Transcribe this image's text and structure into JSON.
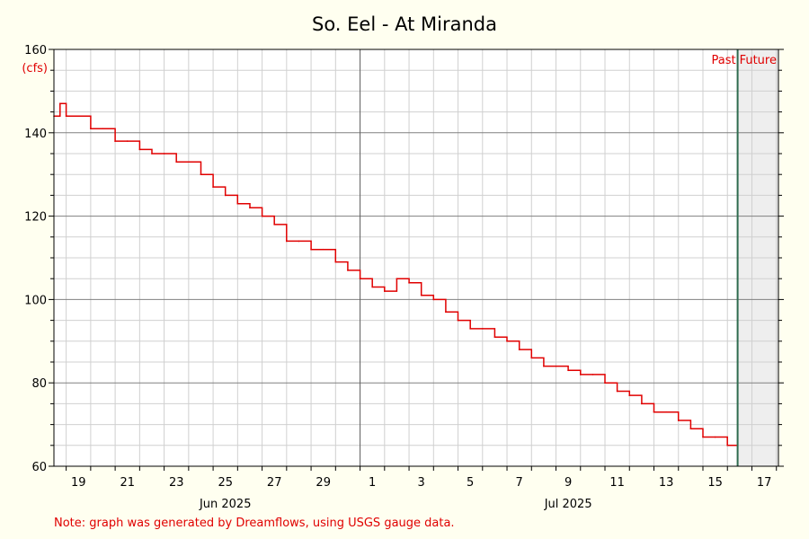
{
  "chart_data": {
    "type": "line",
    "title": "So. Eel - At Miranda",
    "ylabel": "(cfs)",
    "ylim": [
      60,
      160
    ],
    "yticks": [
      60,
      80,
      100,
      120,
      140,
      160
    ],
    "x_range": [
      "2025-06-18 12:00",
      "2025-07-18 02:00"
    ],
    "day_labels": [
      {
        "date": "2025-06-19",
        "label": "19"
      },
      {
        "date": "2025-06-21",
        "label": "21"
      },
      {
        "date": "2025-06-23",
        "label": "23"
      },
      {
        "date": "2025-06-25",
        "label": "25"
      },
      {
        "date": "2025-06-27",
        "label": "27"
      },
      {
        "date": "2025-06-29",
        "label": "29"
      },
      {
        "date": "2025-07-01",
        "label": "1"
      },
      {
        "date": "2025-07-03",
        "label": "3"
      },
      {
        "date": "2025-07-05",
        "label": "5"
      },
      {
        "date": "2025-07-07",
        "label": "7"
      },
      {
        "date": "2025-07-09",
        "label": "9"
      },
      {
        "date": "2025-07-11",
        "label": "11"
      },
      {
        "date": "2025-07-13",
        "label": "13"
      },
      {
        "date": "2025-07-15",
        "label": "15"
      },
      {
        "date": "2025-07-17",
        "label": "17"
      }
    ],
    "month_labels": [
      {
        "date": "2025-06-25",
        "label": "Jun 2025"
      },
      {
        "date": "2025-07-09",
        "label": "Jul 2025"
      }
    ],
    "month_divider": "2025-07-01",
    "now": "2025-07-16 10:00",
    "past_label": "Past",
    "future_label": "Future",
    "series": [
      {
        "color": "#e00000",
        "points": [
          [
            "2025-06-18 12:00",
            144
          ],
          [
            "2025-06-18 18:00",
            147
          ],
          [
            "2025-06-19 00:00",
            144
          ],
          [
            "2025-06-19 12:00",
            144
          ],
          [
            "2025-06-20 00:00",
            141
          ],
          [
            "2025-06-20 12:00",
            141
          ],
          [
            "2025-06-21 00:00",
            138
          ],
          [
            "2025-06-21 12:00",
            138
          ],
          [
            "2025-06-22 00:00",
            136
          ],
          [
            "2025-06-22 12:00",
            135
          ],
          [
            "2025-06-23 00:00",
            135
          ],
          [
            "2025-06-23 12:00",
            133
          ],
          [
            "2025-06-24 00:00",
            133
          ],
          [
            "2025-06-24 12:00",
            130
          ],
          [
            "2025-06-25 00:00",
            127
          ],
          [
            "2025-06-25 12:00",
            125
          ],
          [
            "2025-06-26 00:00",
            123
          ],
          [
            "2025-06-26 12:00",
            122
          ],
          [
            "2025-06-27 00:00",
            120
          ],
          [
            "2025-06-27 12:00",
            118
          ],
          [
            "2025-06-28 00:00",
            114
          ],
          [
            "2025-06-28 12:00",
            114
          ],
          [
            "2025-06-29 00:00",
            112
          ],
          [
            "2025-06-29 12:00",
            112
          ],
          [
            "2025-06-30 00:00",
            109
          ],
          [
            "2025-06-30 12:00",
            107
          ],
          [
            "2025-07-01 00:00",
            105
          ],
          [
            "2025-07-01 12:00",
            103
          ],
          [
            "2025-07-02 00:00",
            102
          ],
          [
            "2025-07-02 12:00",
            105
          ],
          [
            "2025-07-03 00:00",
            104
          ],
          [
            "2025-07-03 12:00",
            101
          ],
          [
            "2025-07-04 00:00",
            100
          ],
          [
            "2025-07-04 12:00",
            97
          ],
          [
            "2025-07-05 00:00",
            95
          ],
          [
            "2025-07-05 12:00",
            93
          ],
          [
            "2025-07-06 00:00",
            93
          ],
          [
            "2025-07-06 12:00",
            91
          ],
          [
            "2025-07-07 00:00",
            90
          ],
          [
            "2025-07-07 12:00",
            88
          ],
          [
            "2025-07-08 00:00",
            86
          ],
          [
            "2025-07-08 12:00",
            84
          ],
          [
            "2025-07-09 00:00",
            84
          ],
          [
            "2025-07-09 12:00",
            83
          ],
          [
            "2025-07-10 00:00",
            82
          ],
          [
            "2025-07-10 12:00",
            82
          ],
          [
            "2025-07-11 00:00",
            80
          ],
          [
            "2025-07-11 12:00",
            78
          ],
          [
            "2025-07-12 00:00",
            77
          ],
          [
            "2025-07-12 12:00",
            75
          ],
          [
            "2025-07-13 00:00",
            73
          ],
          [
            "2025-07-13 12:00",
            73
          ],
          [
            "2025-07-14 00:00",
            71
          ],
          [
            "2025-07-14 12:00",
            69
          ],
          [
            "2025-07-15 00:00",
            67
          ],
          [
            "2025-07-15 12:00",
            67
          ],
          [
            "2025-07-16 00:00",
            65
          ],
          [
            "2025-07-16 10:00",
            65
          ]
        ]
      }
    ],
    "grid": true
  },
  "note": "Note: graph was generated by Dreamflows, using USGS gauge data."
}
